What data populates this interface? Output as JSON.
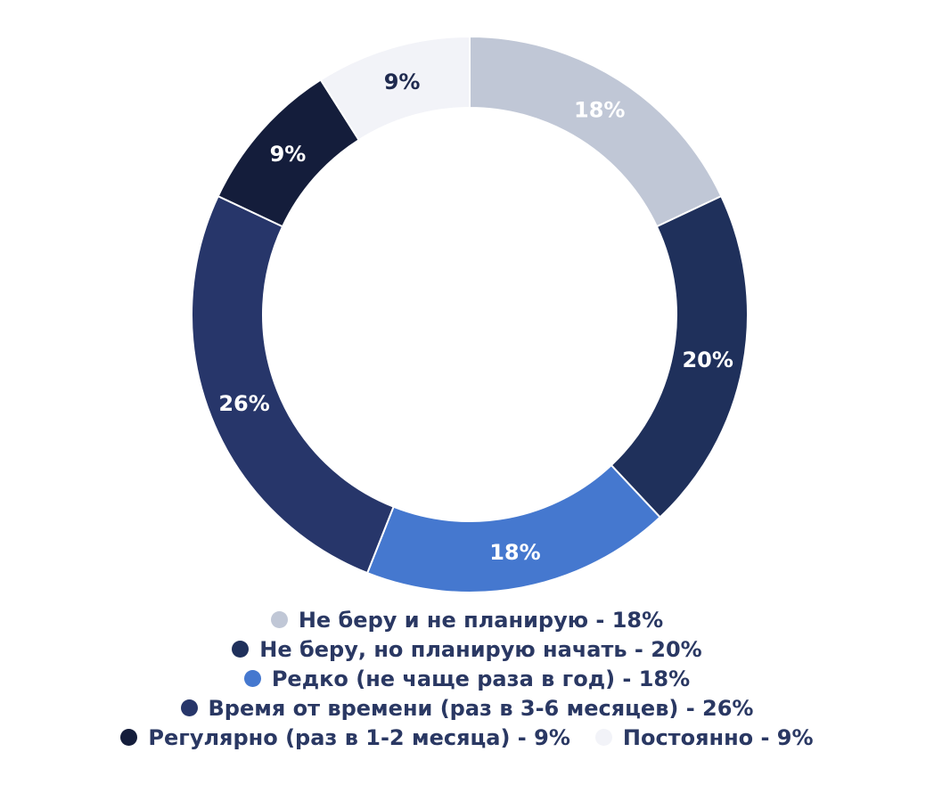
{
  "chart_data": {
    "type": "pie",
    "donut": true,
    "title": "",
    "start_angle": 0,
    "direction": "clockwise",
    "slices": [
      {
        "label": "Не беру и не планирую",
        "value": 18,
        "display": "18%",
        "legend": "Не беру и не планирую - 18%",
        "color": "#c0c7d6",
        "text_color": "#ffffff"
      },
      {
        "label": "Не беру, но планирую начать",
        "value": 20,
        "display": "20%",
        "legend": "Не беру, но планирую начать - 20%",
        "color": "#1f305b",
        "text_color": "#ffffff"
      },
      {
        "label": "Редко (не чаще раза в год)",
        "value": 18,
        "display": "18%",
        "legend": "Редко (не чаще раза в год) - 18%",
        "color": "#4578cf",
        "text_color": "#ffffff"
      },
      {
        "label": "Время от времени (раз в 3-6 месяцев)",
        "value": 26,
        "display": "26%",
        "legend": "Время от времени (раз в 3-6 месяцев) - 26%",
        "color": "#27366a",
        "text_color": "#ffffff"
      },
      {
        "label": "Регулярно (раз в 1-2 месяца)",
        "value": 9,
        "display": "9%",
        "legend": "Регулярно (раз в 1-2 месяца) - 9%",
        "color": "#141d3b",
        "text_color": "#ffffff"
      },
      {
        "label": "Постоянно",
        "value": 9,
        "display": "9%",
        "legend": "Постоянно - 9%",
        "color": "#f2f3f8",
        "text_color": "#1f2a4f"
      }
    ],
    "legend_position": "bottom",
    "legend_rows": [
      [
        0
      ],
      [
        1
      ],
      [
        2
      ],
      [
        3
      ],
      [
        4,
        5
      ]
    ]
  }
}
